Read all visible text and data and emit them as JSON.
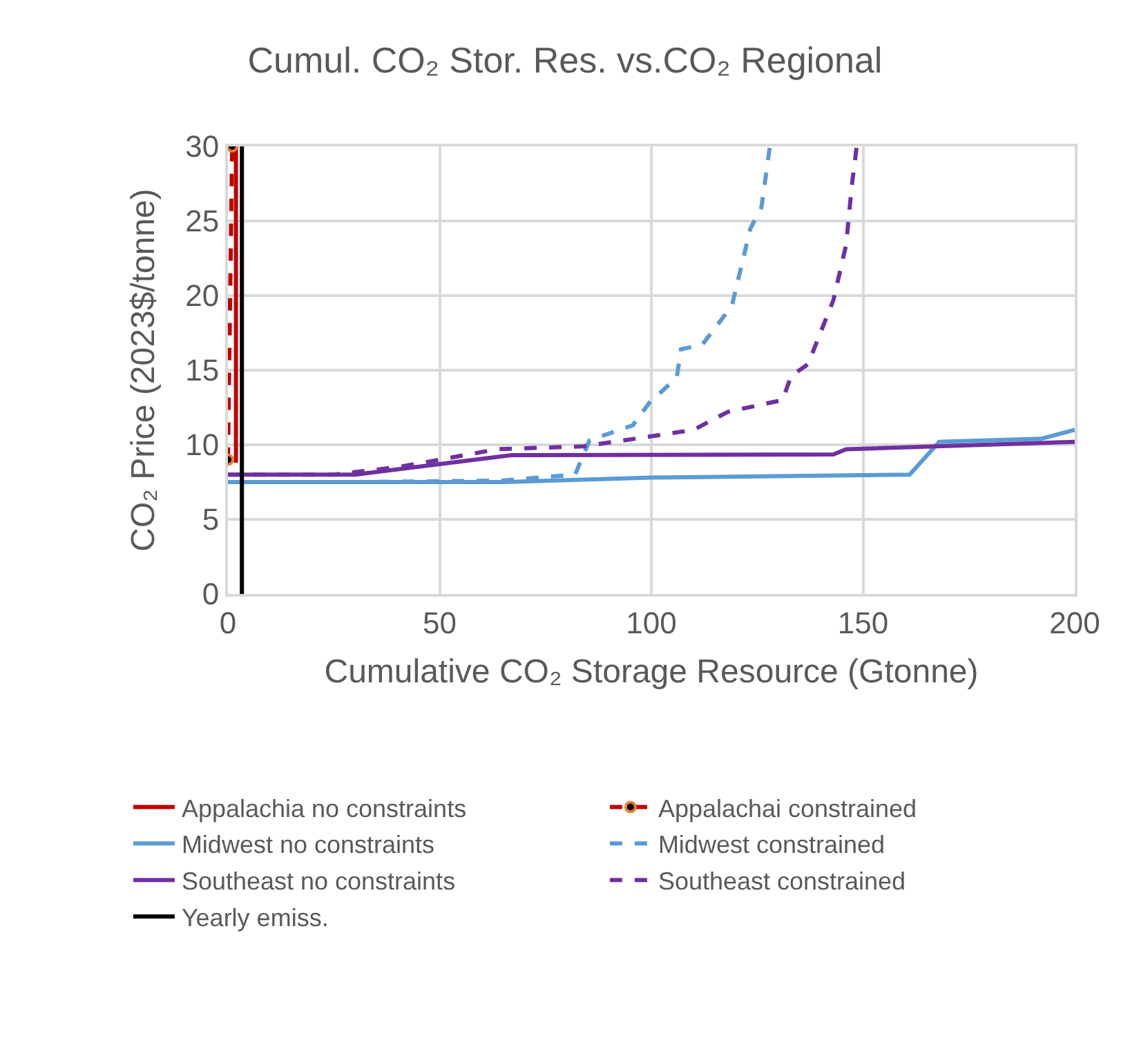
{
  "chart_data": {
    "type": "line",
    "title": "Cumul. CO₂ Stor. Res. vs.CO₂ Regional",
    "xlabel": "Cumulative CO₂ Storage Resource (Gtonne)",
    "ylabel": "CO₂ Price (2023$/tonne)",
    "xlim": [
      0,
      200
    ],
    "xticks": [
      0,
      50,
      100,
      150,
      200
    ],
    "ylim": [
      0,
      30
    ],
    "yticks": [
      0,
      5,
      10,
      15,
      20,
      25,
      30
    ],
    "grid": true,
    "legend": "bottom",
    "series": [
      {
        "name": "Appalachia no constraints",
        "color": "#c00000",
        "line_style": "solid",
        "x": [
          1.9,
          1.9
        ],
        "values": [
          8.8,
          30
        ]
      },
      {
        "name": "Appalachai constrained",
        "color": "#c00000",
        "line_style": "dashed",
        "marker": "circle",
        "x": [
          0,
          1
        ],
        "values": [
          9,
          30
        ]
      },
      {
        "name": "Midwest no constraints",
        "color": "#5b9bd5",
        "line_style": "solid",
        "x": [
          0,
          30,
          65,
          100,
          161,
          168,
          192,
          200
        ],
        "values": [
          7.5,
          7.5,
          7.5,
          7.8,
          8.0,
          10.2,
          10.4,
          11.0
        ]
      },
      {
        "name": "Midwest constrained",
        "color": "#5b9bd5",
        "line_style": "dashed",
        "x": [
          0,
          30,
          65,
          82,
          85.4,
          95.6,
          99.5,
          106,
          107,
          112,
          119,
          123.4,
          126,
          127.8,
          128
        ],
        "values": [
          7.5,
          7.5,
          7.6,
          8.0,
          10.3,
          11.3,
          12.8,
          14.5,
          16.4,
          16.7,
          19.3,
          24.5,
          25.9,
          29.6,
          30
        ]
      },
      {
        "name": "Southeast no constraints",
        "color": "#7030a0",
        "line_style": "solid",
        "x": [
          0,
          30,
          67,
          143,
          146,
          200
        ],
        "values": [
          8.0,
          8.0,
          9.3,
          9.35,
          9.7,
          10.2
        ]
      },
      {
        "name": "Southeast constrained",
        "color": "#7030a0",
        "line_style": "dashed",
        "x": [
          0,
          25,
          40,
          50,
          63.6,
          84,
          96,
          110,
          118,
          131,
          133,
          137,
          143,
          146,
          147.4,
          148.5
        ],
        "values": [
          8.0,
          8.0,
          8.5,
          9.0,
          9.7,
          9.9,
          10.4,
          11.0,
          12.2,
          13.0,
          14.6,
          15.4,
          19.7,
          23.4,
          27.5,
          30
        ]
      },
      {
        "name": "Yearly emiss.",
        "color": "#000000",
        "line_style": "solid",
        "x": [
          3.3,
          3.3
        ],
        "values": [
          0,
          30
        ]
      }
    ]
  }
}
